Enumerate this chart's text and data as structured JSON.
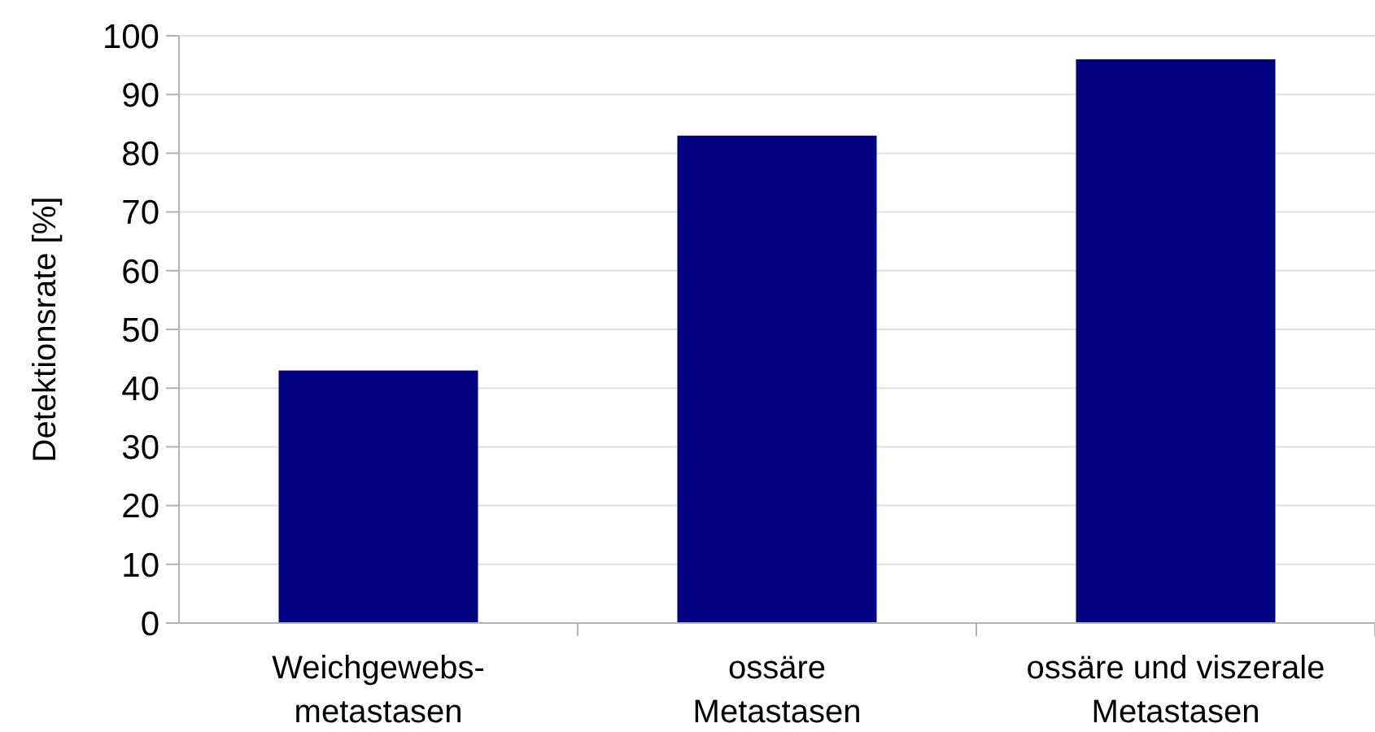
{
  "chart_data": {
    "type": "bar",
    "ylabel": "Detektionsrate [%]",
    "categories": [
      "Weichgewebs-\nmetastasen",
      "ossäre\nMetastasen",
      "ossäre und viszerale\nMetastasen"
    ],
    "values": [
      43,
      83,
      96
    ],
    "color": "#000080",
    "ylim": [
      0,
      100
    ],
    "yticks": [
      0,
      10,
      20,
      30,
      40,
      50,
      60,
      70,
      80,
      90,
      100
    ],
    "grid": "y"
  }
}
